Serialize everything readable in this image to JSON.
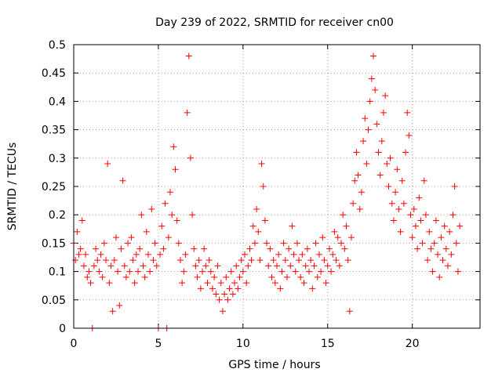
{
  "chart_data": {
    "type": "scatter",
    "title": "Day 239 of 2022, SRMTID for receiver cn00",
    "xlabel": "GPS time / hours",
    "ylabel": "SRMTID / TECUs",
    "xlim": [
      0,
      24
    ],
    "ylim": [
      0,
      0.5
    ],
    "x_ticks": [
      0,
      5,
      10,
      15,
      20
    ],
    "x_tick_labels": [
      "0",
      "5",
      "10",
      "15",
      "20"
    ],
    "y_ticks": [
      0,
      0.05,
      0.1,
      0.15,
      0.2,
      0.25,
      0.3,
      0.35,
      0.4,
      0.45,
      0.5
    ],
    "y_tick_labels": [
      "0",
      "0.05",
      "0.1",
      "0.15",
      "0.2",
      "0.25",
      "0.3",
      "0.35",
      "0.4",
      "0.45",
      "0.5"
    ],
    "grid": true,
    "marker": "+",
    "color": "#ff0000",
    "series": [
      {
        "name": "SRMTID",
        "points": [
          [
            0.0,
            0.15
          ],
          [
            0.1,
            0.12
          ],
          [
            0.2,
            0.17
          ],
          [
            0.3,
            0.13
          ],
          [
            0.4,
            0.14
          ],
          [
            0.5,
            0.19
          ],
          [
            0.6,
            0.11
          ],
          [
            0.7,
            0.13
          ],
          [
            0.8,
            0.09
          ],
          [
            0.9,
            0.1
          ],
          [
            1.0,
            0.08
          ],
          [
            1.1,
            0.0
          ],
          [
            1.2,
            0.11
          ],
          [
            1.3,
            0.14
          ],
          [
            1.4,
            0.12
          ],
          [
            1.5,
            0.1
          ],
          [
            1.6,
            0.13
          ],
          [
            1.7,
            0.09
          ],
          [
            1.8,
            0.15
          ],
          [
            1.9,
            0.12
          ],
          [
            2.0,
            0.29
          ],
          [
            2.1,
            0.08
          ],
          [
            2.2,
            0.11
          ],
          [
            2.3,
            0.03
          ],
          [
            2.4,
            0.12
          ],
          [
            2.5,
            0.16
          ],
          [
            2.6,
            0.1
          ],
          [
            2.7,
            0.04
          ],
          [
            2.8,
            0.14
          ],
          [
            2.9,
            0.26
          ],
          [
            3.0,
            0.11
          ],
          [
            3.1,
            0.09
          ],
          [
            3.2,
            0.15
          ],
          [
            3.3,
            0.1
          ],
          [
            3.4,
            0.16
          ],
          [
            3.5,
            0.12
          ],
          [
            3.6,
            0.08
          ],
          [
            3.7,
            0.13
          ],
          [
            3.8,
            0.1
          ],
          [
            3.9,
            0.14
          ],
          [
            4.0,
            0.2
          ],
          [
            4.1,
            0.11
          ],
          [
            4.2,
            0.09
          ],
          [
            4.3,
            0.17
          ],
          [
            4.4,
            0.13
          ],
          [
            4.5,
            0.1
          ],
          [
            4.6,
            0.21
          ],
          [
            4.7,
            0.12
          ],
          [
            4.8,
            0.15
          ],
          [
            4.9,
            0.11
          ],
          [
            5.0,
            0.0
          ],
          [
            5.1,
            0.13
          ],
          [
            5.2,
            0.18
          ],
          [
            5.3,
            0.14
          ],
          [
            5.4,
            0.22
          ],
          [
            5.5,
            0.0
          ],
          [
            5.6,
            0.16
          ],
          [
            5.7,
            0.24
          ],
          [
            5.8,
            0.2
          ],
          [
            5.9,
            0.32
          ],
          [
            6.0,
            0.28
          ],
          [
            6.1,
            0.19
          ],
          [
            6.2,
            0.15
          ],
          [
            6.3,
            0.12
          ],
          [
            6.4,
            0.08
          ],
          [
            6.5,
            0.1
          ],
          [
            6.6,
            0.13
          ],
          [
            6.7,
            0.38
          ],
          [
            6.8,
            0.48
          ],
          [
            6.9,
            0.3
          ],
          [
            7.0,
            0.2
          ],
          [
            7.1,
            0.14
          ],
          [
            7.2,
            0.11
          ],
          [
            7.3,
            0.09
          ],
          [
            7.4,
            0.12
          ],
          [
            7.5,
            0.07
          ],
          [
            7.6,
            0.1
          ],
          [
            7.7,
            0.14
          ],
          [
            7.8,
            0.11
          ],
          [
            7.9,
            0.08
          ],
          [
            8.0,
            0.12
          ],
          [
            8.1,
            0.1
          ],
          [
            8.2,
            0.07
          ],
          [
            8.3,
            0.09
          ],
          [
            8.4,
            0.06
          ],
          [
            8.5,
            0.11
          ],
          [
            8.6,
            0.05
          ],
          [
            8.7,
            0.08
          ],
          [
            8.8,
            0.03
          ],
          [
            8.9,
            0.06
          ],
          [
            9.0,
            0.09
          ],
          [
            9.1,
            0.05
          ],
          [
            9.2,
            0.07
          ],
          [
            9.3,
            0.1
          ],
          [
            9.4,
            0.06
          ],
          [
            9.5,
            0.08
          ],
          [
            9.6,
            0.11
          ],
          [
            9.7,
            0.07
          ],
          [
            9.8,
            0.09
          ],
          [
            9.9,
            0.12
          ],
          [
            10.0,
            0.1
          ],
          [
            10.1,
            0.13
          ],
          [
            10.2,
            0.08
          ],
          [
            10.3,
            0.11
          ],
          [
            10.4,
            0.14
          ],
          [
            10.5,
            0.12
          ],
          [
            10.6,
            0.18
          ],
          [
            10.7,
            0.15
          ],
          [
            10.8,
            0.21
          ],
          [
            10.9,
            0.17
          ],
          [
            11.0,
            0.12
          ],
          [
            11.1,
            0.29
          ],
          [
            11.2,
            0.25
          ],
          [
            11.3,
            0.19
          ],
          [
            11.4,
            0.15
          ],
          [
            11.5,
            0.11
          ],
          [
            11.6,
            0.14
          ],
          [
            11.7,
            0.09
          ],
          [
            11.8,
            0.12
          ],
          [
            11.9,
            0.08
          ],
          [
            12.0,
            0.11
          ],
          [
            12.1,
            0.13
          ],
          [
            12.2,
            0.07
          ],
          [
            12.3,
            0.1
          ],
          [
            12.4,
            0.15
          ],
          [
            12.5,
            0.12
          ],
          [
            12.6,
            0.09
          ],
          [
            12.7,
            0.14
          ],
          [
            12.8,
            0.11
          ],
          [
            12.9,
            0.18
          ],
          [
            13.0,
            0.13
          ],
          [
            13.1,
            0.1
          ],
          [
            13.2,
            0.15
          ],
          [
            13.3,
            0.12
          ],
          [
            13.4,
            0.09
          ],
          [
            13.5,
            0.13
          ],
          [
            13.6,
            0.08
          ],
          [
            13.7,
            0.11
          ],
          [
            13.8,
            0.14
          ],
          [
            13.9,
            0.1
          ],
          [
            14.0,
            0.12
          ],
          [
            14.1,
            0.07
          ],
          [
            14.2,
            0.11
          ],
          [
            14.3,
            0.15
          ],
          [
            14.4,
            0.09
          ],
          [
            14.5,
            0.13
          ],
          [
            14.6,
            0.1
          ],
          [
            14.7,
            0.16
          ],
          [
            14.8,
            0.12
          ],
          [
            14.9,
            0.08
          ],
          [
            15.0,
            0.11
          ],
          [
            15.1,
            0.14
          ],
          [
            15.2,
            0.1
          ],
          [
            15.3,
            0.13
          ],
          [
            15.4,
            0.17
          ],
          [
            15.5,
            0.12
          ],
          [
            15.6,
            0.16
          ],
          [
            15.7,
            0.11
          ],
          [
            15.8,
            0.15
          ],
          [
            15.9,
            0.2
          ],
          [
            16.0,
            0.14
          ],
          [
            16.1,
            0.18
          ],
          [
            16.2,
            0.12
          ],
          [
            16.3,
            0.03
          ],
          [
            16.4,
            0.16
          ],
          [
            16.5,
            0.22
          ],
          [
            16.6,
            0.26
          ],
          [
            16.7,
            0.31
          ],
          [
            16.8,
            0.27
          ],
          [
            16.9,
            0.21
          ],
          [
            17.0,
            0.24
          ],
          [
            17.1,
            0.33
          ],
          [
            17.2,
            0.37
          ],
          [
            17.3,
            0.29
          ],
          [
            17.4,
            0.35
          ],
          [
            17.5,
            0.4
          ],
          [
            17.6,
            0.44
          ],
          [
            17.7,
            0.48
          ],
          [
            17.8,
            0.42
          ],
          [
            17.9,
            0.36
          ],
          [
            18.0,
            0.31
          ],
          [
            18.1,
            0.27
          ],
          [
            18.2,
            0.33
          ],
          [
            18.3,
            0.38
          ],
          [
            18.4,
            0.41
          ],
          [
            18.5,
            0.29
          ],
          [
            18.6,
            0.25
          ],
          [
            18.7,
            0.3
          ],
          [
            18.8,
            0.22
          ],
          [
            18.9,
            0.19
          ],
          [
            19.0,
            0.24
          ],
          [
            19.1,
            0.28
          ],
          [
            19.2,
            0.21
          ],
          [
            19.3,
            0.17
          ],
          [
            19.4,
            0.26
          ],
          [
            19.5,
            0.22
          ],
          [
            19.6,
            0.31
          ],
          [
            19.7,
            0.38
          ],
          [
            19.8,
            0.34
          ],
          [
            19.9,
            0.2
          ],
          [
            20.0,
            0.16
          ],
          [
            20.1,
            0.21
          ],
          [
            20.2,
            0.18
          ],
          [
            20.3,
            0.14
          ],
          [
            20.4,
            0.23
          ],
          [
            20.5,
            0.19
          ],
          [
            20.6,
            0.15
          ],
          [
            20.7,
            0.26
          ],
          [
            20.8,
            0.2
          ],
          [
            20.9,
            0.12
          ],
          [
            21.0,
            0.17
          ],
          [
            21.1,
            0.14
          ],
          [
            21.2,
            0.1
          ],
          [
            21.3,
            0.15
          ],
          [
            21.4,
            0.19
          ],
          [
            21.5,
            0.13
          ],
          [
            21.6,
            0.09
          ],
          [
            21.7,
            0.16
          ],
          [
            21.8,
            0.12
          ],
          [
            21.9,
            0.18
          ],
          [
            22.0,
            0.14
          ],
          [
            22.1,
            0.11
          ],
          [
            22.2,
            0.17
          ],
          [
            22.3,
            0.13
          ],
          [
            22.4,
            0.2
          ],
          [
            22.5,
            0.25
          ],
          [
            22.6,
            0.15
          ],
          [
            22.7,
            0.1
          ],
          [
            22.8,
            0.18
          ]
        ]
      }
    ]
  }
}
